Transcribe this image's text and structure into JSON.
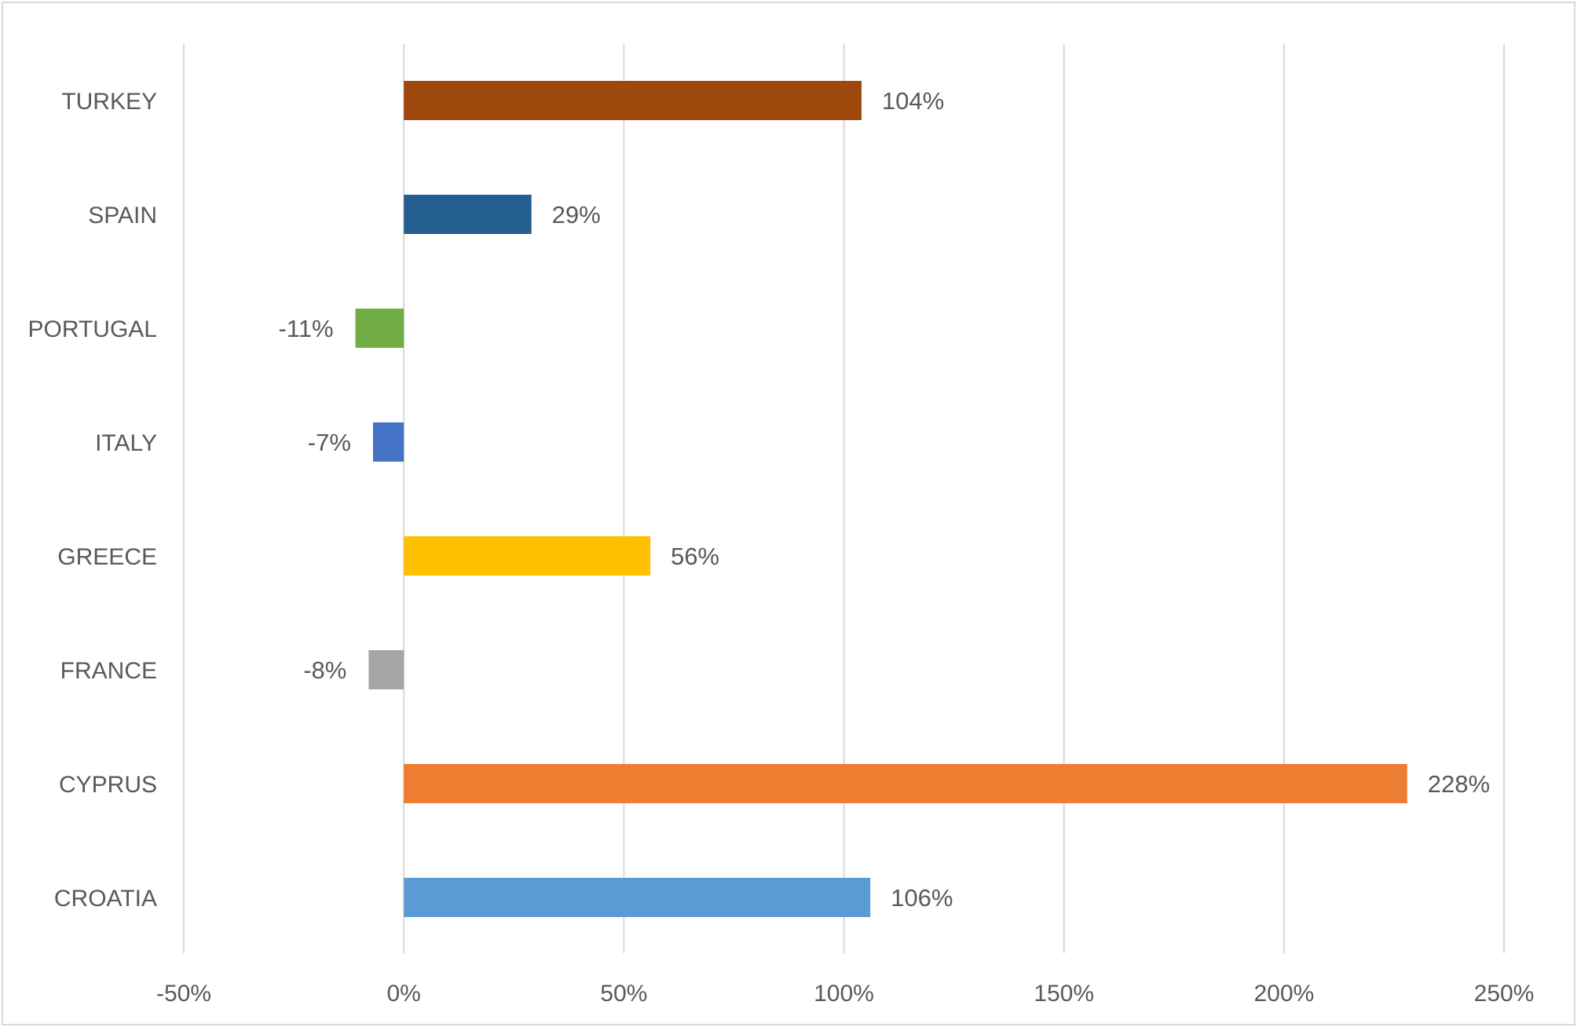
{
  "chart_data": {
    "type": "bar",
    "orientation": "horizontal",
    "title": "",
    "xlabel": "",
    "ylabel": "",
    "categories": [
      "TURKEY",
      "SPAIN",
      "PORTUGAL",
      "ITALY",
      "GREECE",
      "FRANCE",
      "CYPRUS",
      "CROATIA"
    ],
    "values": [
      104,
      29,
      -11,
      -7,
      56,
      -8,
      228,
      106
    ],
    "data_labels": [
      "104%",
      "29%",
      "-11%",
      "-7%",
      "56%",
      "-8%",
      "228%",
      "106%"
    ],
    "bar_colors": [
      "#9E480E",
      "#255E91",
      "#70AD47",
      "#4472C4",
      "#FFC000",
      "#A5A5A5",
      "#ED7D31",
      "#5B9BD5"
    ],
    "xlim": [
      -50,
      250
    ],
    "x_ticks": [
      -50,
      0,
      50,
      100,
      150,
      200,
      250
    ],
    "x_tick_labels": [
      "-50%",
      "0%",
      "50%",
      "100%",
      "150%",
      "200%",
      "250%"
    ],
    "grid": true,
    "legend": "none",
    "gridline_color": "#d9d9d9",
    "text_color": "#595959"
  }
}
